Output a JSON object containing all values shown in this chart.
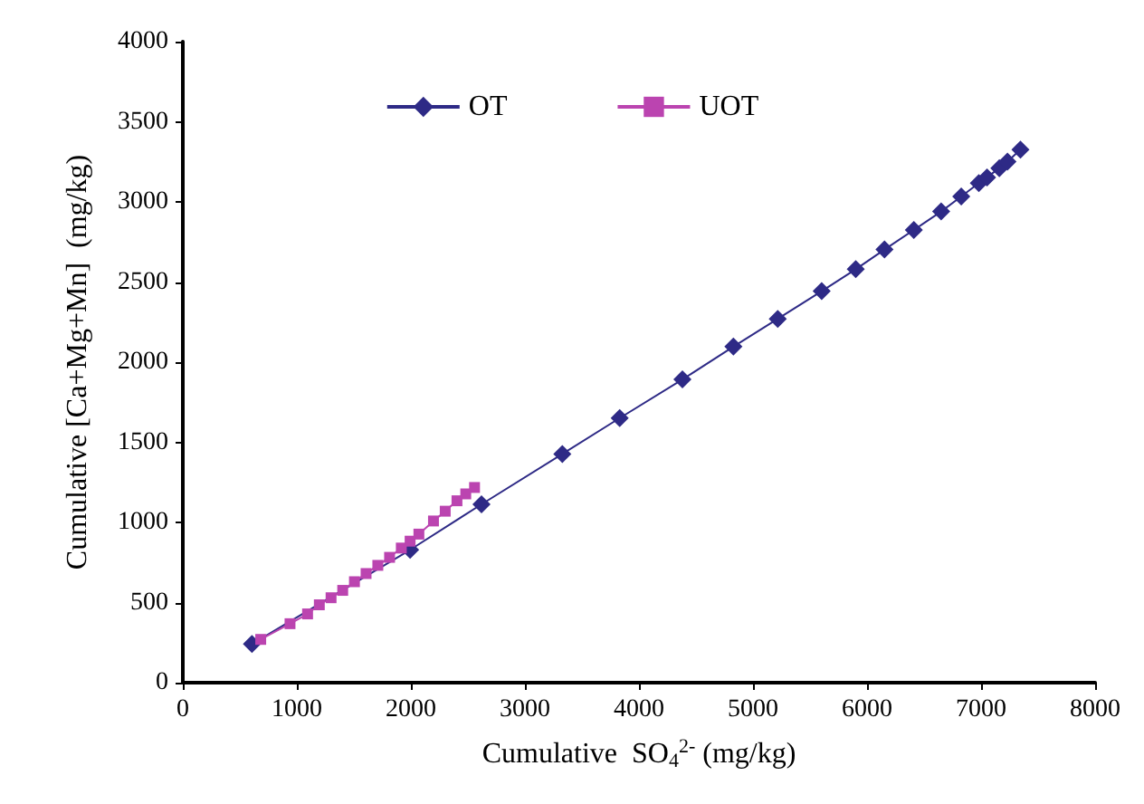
{
  "chart_data": {
    "type": "line",
    "xlabel": "Cumulative  SO$_{4}$$^{2-}$ (mg/kg)",
    "ylabel": "Cumulative [Ca+Mg+Mn]  (mg/kg)",
    "xlim": [
      0,
      8000
    ],
    "xticks": [
      0,
      1000,
      2000,
      3000,
      4000,
      5000,
      6000,
      7000,
      8000
    ],
    "ylim": [
      0,
      4000
    ],
    "yticks": [
      0,
      500,
      1000,
      1500,
      2000,
      2500,
      3000,
      3500,
      4000
    ],
    "grid": false,
    "legend": "top",
    "series": [
      {
        "name": "OT",
        "color": "#2e2a86",
        "marker": "diamond",
        "x": [
          606,
          1993,
          2619,
          3328,
          3831,
          4381,
          4828,
          5217,
          5602,
          5901,
          6153,
          6410,
          6650,
          6826,
          6980,
          7052,
          7160,
          7231,
          7345
        ],
        "values": [
          241,
          829,
          1113,
          1427,
          1651,
          1892,
          2097,
          2270,
          2443,
          2580,
          2703,
          2825,
          2940,
          3034,
          3117,
          3153,
          3211,
          3251,
          3326
        ]
      },
      {
        "name": "UOT",
        "color": "#bb44b0",
        "marker": "square",
        "x": [
          683,
          940,
          1094,
          1197,
          1300,
          1402,
          1505,
          1607,
          1710,
          1813,
          1916,
          1993,
          2070,
          2198,
          2301,
          2404,
          2481,
          2558
        ],
        "values": [
          270,
          368,
          429,
          486,
          530,
          576,
          630,
          681,
          732,
          782,
          840,
          883,
          927,
          1009,
          1070,
          1135,
          1178,
          1218
        ]
      }
    ]
  }
}
